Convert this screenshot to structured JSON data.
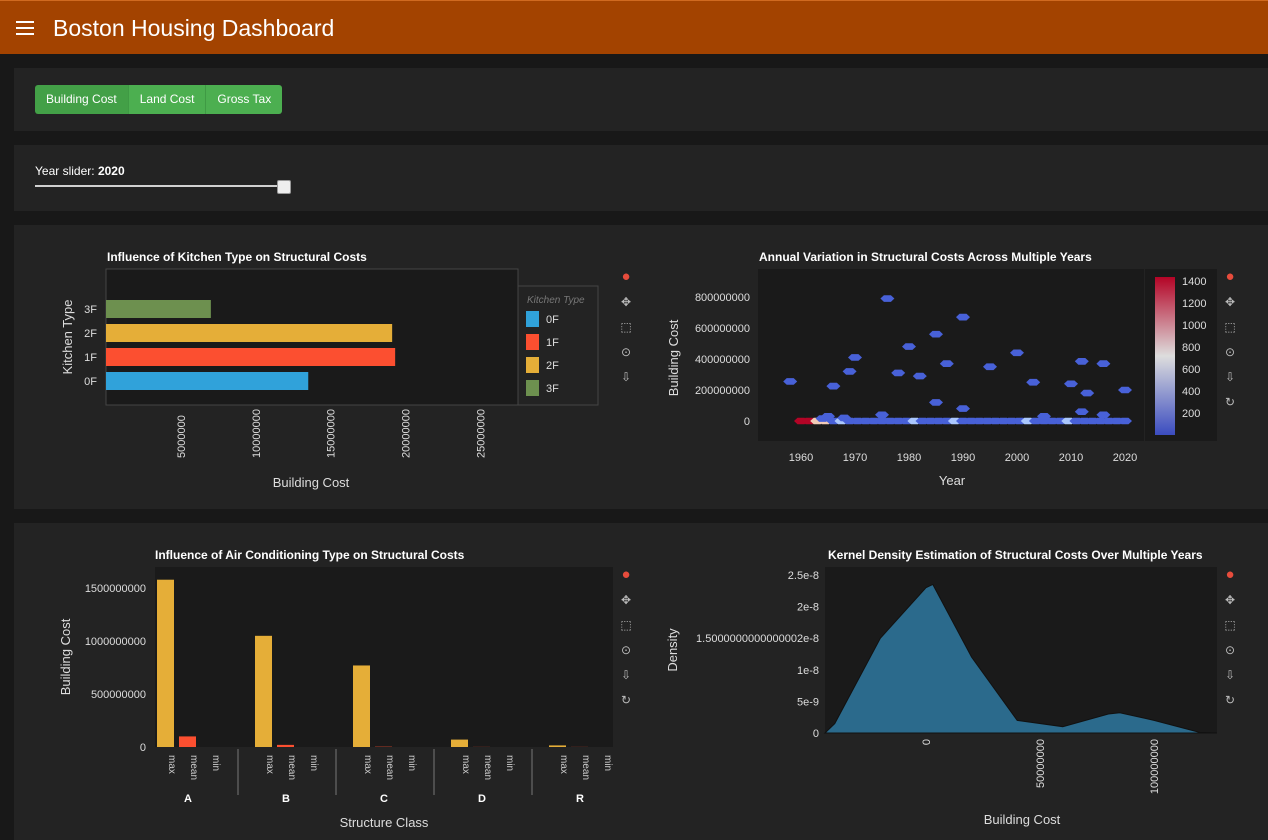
{
  "header": {
    "title": "Boston Housing Dashboard"
  },
  "metric_buttons": [
    "Building Cost",
    "Land Cost",
    "Gross Tax"
  ],
  "slider": {
    "label": "Year slider:",
    "value": "2020"
  },
  "chart_data": [
    {
      "type": "bar",
      "title": "Influence of Kitchen Type on Structural Costs",
      "orientation": "horizontal",
      "categories": [
        "0F",
        "1F",
        "2F",
        "3F"
      ],
      "values": [
        13500000,
        19300000,
        19100000,
        7000000
      ],
      "colors": [
        "#30a2da",
        "#fc4f30",
        "#e5ae38",
        "#6d904f"
      ],
      "xlabel": "Building Cost",
      "ylabel": "Kitchen Type",
      "xticks": [
        "5000000",
        "10000000",
        "15000000",
        "20000000",
        "25000000"
      ],
      "legend_title": "Kitchen Type",
      "xlim": [
        0,
        27500000
      ]
    },
    {
      "type": "heatmap",
      "title": "Annual Variation in Structural Costs Across Multiple Years",
      "xlabel": "Year",
      "ylabel": "Building Cost",
      "xticks": [
        "1960",
        "1970",
        "1980",
        "1990",
        "2000",
        "2010",
        "2020"
      ],
      "yticks": [
        "0",
        "200000000",
        "400000000",
        "600000000",
        "800000000"
      ],
      "colorbar_ticks": [
        "200",
        "400",
        "600",
        "800",
        "1000",
        "1200",
        "1400"
      ],
      "colormap": "coolwarm"
    },
    {
      "type": "bar",
      "title": "Influence of Air Conditioning Type on Structural Costs",
      "groups": [
        "A",
        "B",
        "C",
        "D",
        "R"
      ],
      "stats": [
        "max",
        "mean",
        "min"
      ],
      "series": [
        {
          "name": "max",
          "values": [
            1580000000,
            1050000000,
            770000000,
            70000000,
            15000000
          ]
        },
        {
          "name": "mean",
          "values": [
            100000000,
            20000000,
            3000000,
            1000000,
            1000000
          ]
        },
        {
          "name": "min",
          "values": [
            0,
            0,
            0,
            0,
            0
          ]
        }
      ],
      "xlabel": "Structure Class",
      "ylabel": "Building Cost",
      "yticks": [
        "0",
        "500000000",
        "1000000000",
        "1500000000"
      ],
      "ylim": [
        0,
        1700000000
      ]
    },
    {
      "type": "area",
      "title": "Kernel Density Estimation of Structural Costs Over Multiple Years",
      "xlabel": "Building Cost",
      "ylabel": "Density",
      "xticks": [
        "0",
        "50000000",
        "100000000"
      ],
      "yticks": [
        "0",
        "5e-9",
        "1e-8",
        "1.5000000000000002e-8",
        "2e-8",
        "2.5e-8"
      ],
      "x": [
        -40000000,
        -20000000,
        0,
        3000000,
        20000000,
        40000000,
        60000000,
        80000000,
        85000000,
        100000000,
        120000000
      ],
      "y": [
        1.5e-09,
        1.5e-08,
        2.3e-08,
        2.35e-08,
        1.2e-08,
        2e-09,
        1e-09,
        3e-09,
        3.2e-09,
        2e-09,
        1e-10
      ],
      "color": "#30a2da"
    }
  ]
}
